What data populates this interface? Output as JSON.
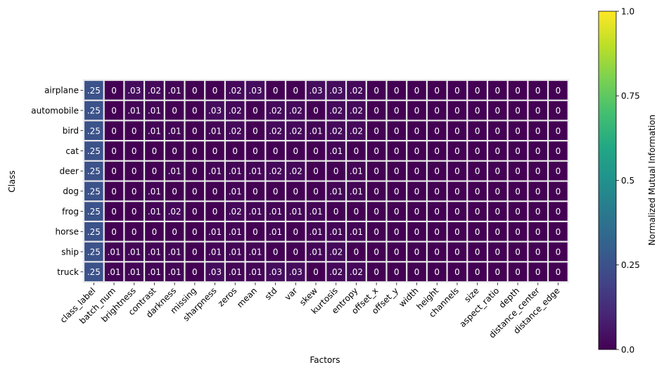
{
  "chart_data": {
    "type": "heatmap",
    "title": "",
    "xlabel": "Factors",
    "ylabel": "Class",
    "rows": [
      "airplane",
      "automobile",
      "bird",
      "cat",
      "deer",
      "dog",
      "frog",
      "horse",
      "ship",
      "truck"
    ],
    "columns": [
      "class_label",
      "batch_num",
      "brightness",
      "contrast",
      "darkness",
      "missing",
      "sharpness",
      "zeros",
      "mean",
      "std",
      "var",
      "skew",
      "kurtosis",
      "entropy",
      "offset_x",
      "offset_y",
      "width",
      "height",
      "channels",
      "size",
      "aspect_ratio",
      "depth",
      "distance_center",
      "distance_edge"
    ],
    "values": [
      [
        0.25,
        0,
        0.03,
        0.02,
        0.01,
        0,
        0,
        0.02,
        0.03,
        0,
        0,
        0.03,
        0.03,
        0.02,
        0,
        0,
        0,
        0,
        0,
        0,
        0,
        0,
        0,
        0
      ],
      [
        0.25,
        0,
        0.01,
        0.01,
        0,
        0,
        0.03,
        0.02,
        0,
        0.02,
        0.02,
        0,
        0.02,
        0.02,
        0,
        0,
        0,
        0,
        0,
        0,
        0,
        0,
        0,
        0
      ],
      [
        0.25,
        0,
        0,
        0.01,
        0.01,
        0,
        0.01,
        0.02,
        0,
        0.02,
        0.02,
        0.01,
        0.02,
        0.02,
        0,
        0,
        0,
        0,
        0,
        0,
        0,
        0,
        0,
        0
      ],
      [
        0.25,
        0,
        0,
        0,
        0,
        0,
        0,
        0,
        0,
        0,
        0,
        0,
        0.01,
        0,
        0,
        0,
        0,
        0,
        0,
        0,
        0,
        0,
        0,
        0
      ],
      [
        0.25,
        0,
        0,
        0,
        0.01,
        0,
        0.01,
        0.01,
        0.01,
        0.02,
        0.02,
        0,
        0,
        0.01,
        0,
        0,
        0,
        0,
        0,
        0,
        0,
        0,
        0,
        0
      ],
      [
        0.25,
        0,
        0,
        0.01,
        0,
        0,
        0,
        0.01,
        0,
        0,
        0,
        0,
        0.01,
        0.01,
        0,
        0,
        0,
        0,
        0,
        0,
        0,
        0,
        0,
        0
      ],
      [
        0.25,
        0,
        0,
        0.01,
        0.02,
        0,
        0,
        0.02,
        0.01,
        0.01,
        0.01,
        0.01,
        0,
        0,
        0,
        0,
        0,
        0,
        0,
        0,
        0,
        0,
        0,
        0
      ],
      [
        0.25,
        0,
        0,
        0,
        0,
        0,
        0.01,
        0.01,
        0,
        0.01,
        0,
        0.01,
        0.01,
        0.01,
        0,
        0,
        0,
        0,
        0,
        0,
        0,
        0,
        0,
        0
      ],
      [
        0.25,
        0.01,
        0.01,
        0.01,
        0.01,
        0,
        0.01,
        0.01,
        0.01,
        0,
        0,
        0.01,
        0.02,
        0,
        0,
        0,
        0,
        0,
        0,
        0,
        0,
        0,
        0,
        0
      ],
      [
        0.25,
        0.01,
        0.01,
        0.01,
        0.01,
        0,
        0.03,
        0.01,
        0.01,
        0.03,
        0.03,
        0,
        0.02,
        0.02,
        0,
        0,
        0,
        0,
        0,
        0,
        0,
        0,
        0,
        0
      ]
    ],
    "value_labels": [
      [
        ".25",
        "0",
        ".03",
        ".02",
        ".01",
        "0",
        "0",
        ".02",
        ".03",
        "0",
        "0",
        ".03",
        ".03",
        ".02",
        "0",
        "0",
        "0",
        "0",
        "0",
        "0",
        "0",
        "0",
        "0",
        "0"
      ],
      [
        ".25",
        "0",
        ".01",
        ".01",
        "0",
        "0",
        ".03",
        ".02",
        "0",
        ".02",
        ".02",
        "0",
        ".02",
        ".02",
        "0",
        "0",
        "0",
        "0",
        "0",
        "0",
        "0",
        "0",
        "0",
        "0"
      ],
      [
        ".25",
        "0",
        "0",
        ".01",
        ".01",
        "0",
        ".01",
        ".02",
        "0",
        ".02",
        ".02",
        ".01",
        ".02",
        ".02",
        "0",
        "0",
        "0",
        "0",
        "0",
        "0",
        "0",
        "0",
        "0",
        "0"
      ],
      [
        ".25",
        "0",
        "0",
        "0",
        "0",
        "0",
        "0",
        "0",
        "0",
        "0",
        "0",
        "0",
        ".01",
        "0",
        "0",
        "0",
        "0",
        "0",
        "0",
        "0",
        "0",
        "0",
        "0",
        "0"
      ],
      [
        ".25",
        "0",
        "0",
        "0",
        ".01",
        "0",
        ".01",
        ".01",
        ".01",
        ".02",
        ".02",
        "0",
        "0",
        ".01",
        "0",
        "0",
        "0",
        "0",
        "0",
        "0",
        "0",
        "0",
        "0",
        "0"
      ],
      [
        ".25",
        "0",
        "0",
        ".01",
        "0",
        "0",
        "0",
        ".01",
        "0",
        "0",
        "0",
        "0",
        ".01",
        ".01",
        "0",
        "0",
        "0",
        "0",
        "0",
        "0",
        "0",
        "0",
        "0",
        "0"
      ],
      [
        ".25",
        "0",
        "0",
        ".01",
        ".02",
        "0",
        "0",
        ".02",
        ".01",
        ".01",
        ".01",
        ".01",
        "0",
        "0",
        "0",
        "0",
        "0",
        "0",
        "0",
        "0",
        "0",
        "0",
        "0",
        "0"
      ],
      [
        ".25",
        "0",
        "0",
        "0",
        "0",
        "0",
        ".01",
        ".01",
        "0",
        ".01",
        "0",
        ".01",
        ".01",
        ".01",
        "0",
        "0",
        "0",
        "0",
        "0",
        "0",
        "0",
        "0",
        "0",
        "0"
      ],
      [
        ".25",
        ".01",
        ".01",
        ".01",
        ".01",
        "0",
        ".01",
        ".01",
        ".01",
        "0",
        "0",
        ".01",
        ".02",
        "0",
        "0",
        "0",
        "0",
        "0",
        "0",
        "0",
        "0",
        "0",
        "0",
        "0"
      ],
      [
        ".25",
        ".01",
        ".01",
        ".01",
        ".01",
        "0",
        ".03",
        ".01",
        ".01",
        ".03",
        ".03",
        "0",
        ".02",
        ".02",
        "0",
        "0",
        "0",
        "0",
        "0",
        "0",
        "0",
        "0",
        "0",
        "0"
      ]
    ],
    "colormap": "viridis",
    "vmin": 0,
    "vmax": 1,
    "colorbar": {
      "label": "Normalized Mutual Information",
      "ticks": [
        0,
        0.25,
        0.5,
        0.75,
        1
      ],
      "tick_labels": [
        "0.0",
        "0.25",
        "0.5",
        "0.75",
        "1.0"
      ]
    },
    "grid": false,
    "cell_border_color": "#e8e8e8"
  }
}
